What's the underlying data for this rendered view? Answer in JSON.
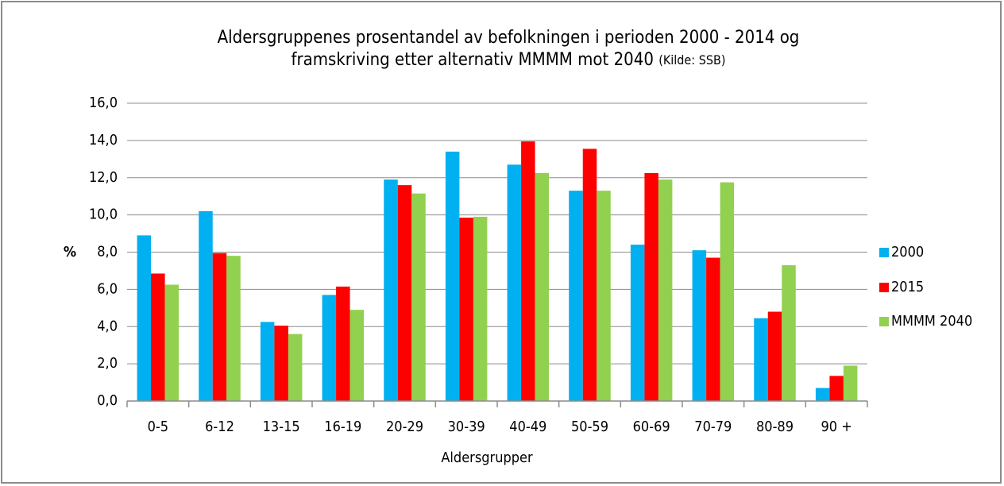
{
  "chart_data": {
    "type": "bar",
    "title": [
      "Aldersgruppenes prosentandel av befolkningen i perioden 2000 - 2014 og",
      "framskriving etter alternativ MMMM mot 2040"
    ],
    "source": "(Kilde: SSB)",
    "x_label": "Aldersgrupper",
    "y_label": "%",
    "categories": [
      "0-5",
      "6-12",
      "13-15",
      "16-19",
      "20-29",
      "30-39",
      "40-49",
      "50-59",
      "60-69",
      "70-79",
      "80-89",
      "90 +"
    ],
    "series": [
      {
        "name": "2000",
        "color": "#00b0f0",
        "values": [
          8.9,
          10.2,
          4.25,
          5.7,
          11.9,
          13.4,
          12.7,
          11.3,
          8.4,
          8.1,
          4.45,
          0.7
        ]
      },
      {
        "name": "2015",
        "color": "#ff0000",
        "values": [
          6.85,
          7.95,
          4.05,
          6.15,
          11.6,
          9.85,
          13.95,
          13.55,
          12.25,
          7.7,
          4.8,
          1.35
        ]
      },
      {
        "name": "MMMM 2040",
        "color": "#92d050",
        "values": [
          6.25,
          7.8,
          3.6,
          4.9,
          11.15,
          9.9,
          12.25,
          11.3,
          11.9,
          11.75,
          7.3,
          1.9
        ]
      }
    ],
    "ylim": [
      0,
      16
    ],
    "yticks": [
      {
        "value": 0,
        "label": "0,0"
      },
      {
        "value": 2,
        "label": "2,0"
      },
      {
        "value": 4,
        "label": "4,0"
      },
      {
        "value": 6,
        "label": "6,0"
      },
      {
        "value": 8,
        "label": "8,0"
      },
      {
        "value": 10,
        "label": "10,0"
      },
      {
        "value": 12,
        "label": "12,0"
      },
      {
        "value": 14,
        "label": "14,0"
      },
      {
        "value": 16,
        "label": "16,0"
      }
    ],
    "grid": true,
    "legend": "right"
  }
}
